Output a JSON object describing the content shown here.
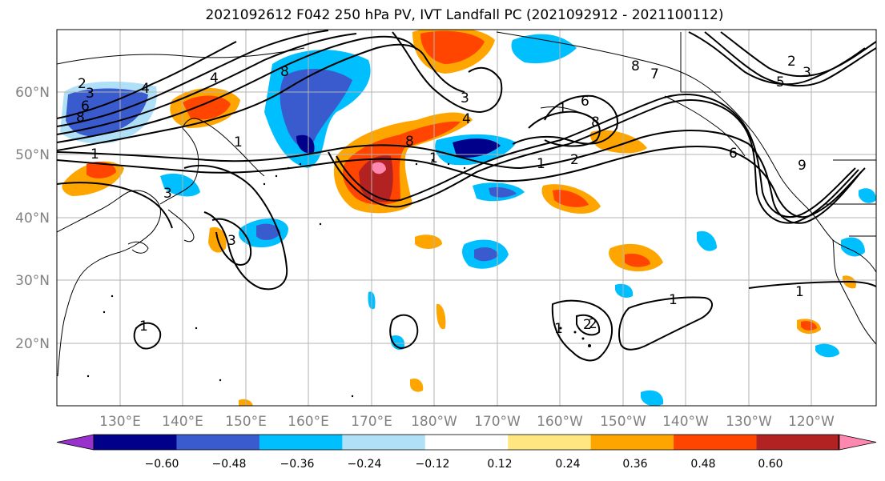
{
  "title": "2021092612 F042 250 hPa PV, IVT Landfall PC (2021092912 - 2021100112)",
  "longitude_labels": [
    "130°E",
    "140°E",
    "150°E",
    "160°E",
    "170°E",
    "180°W",
    "170°W",
    "160°W",
    "150°W",
    "140°W",
    "130°W",
    "120°W"
  ],
  "latitude_labels": [
    "60°N",
    "50°N",
    "40°N",
    "30°N",
    "20°N"
  ],
  "colorbar": {
    "tick_labels": [
      "−0.60",
      "−0.48",
      "−0.36",
      "−0.24",
      "−0.12",
      "0.12",
      "0.24",
      "0.36",
      "0.48",
      "0.60"
    ],
    "colors": [
      "#9932cc",
      "#00008b",
      "#3a5bcd",
      "#00bfff",
      "#b0e0f8",
      "#ffffff",
      "#ffe680",
      "#ffa500",
      "#ff4500",
      "#b22222",
      "#ff88b0"
    ]
  },
  "contour_labels": [
    "2",
    "3",
    "4",
    "6",
    "8",
    "1",
    "3",
    "4",
    "8",
    "8",
    "1",
    "3",
    "2",
    "6",
    "8",
    "1",
    "1",
    "2",
    "1",
    "3",
    "4",
    "5",
    "6",
    "8",
    "9",
    "1",
    "1",
    "1",
    "1",
    "2",
    "3",
    "7",
    "2"
  ],
  "land_color": "#ffffff",
  "grid": true
}
